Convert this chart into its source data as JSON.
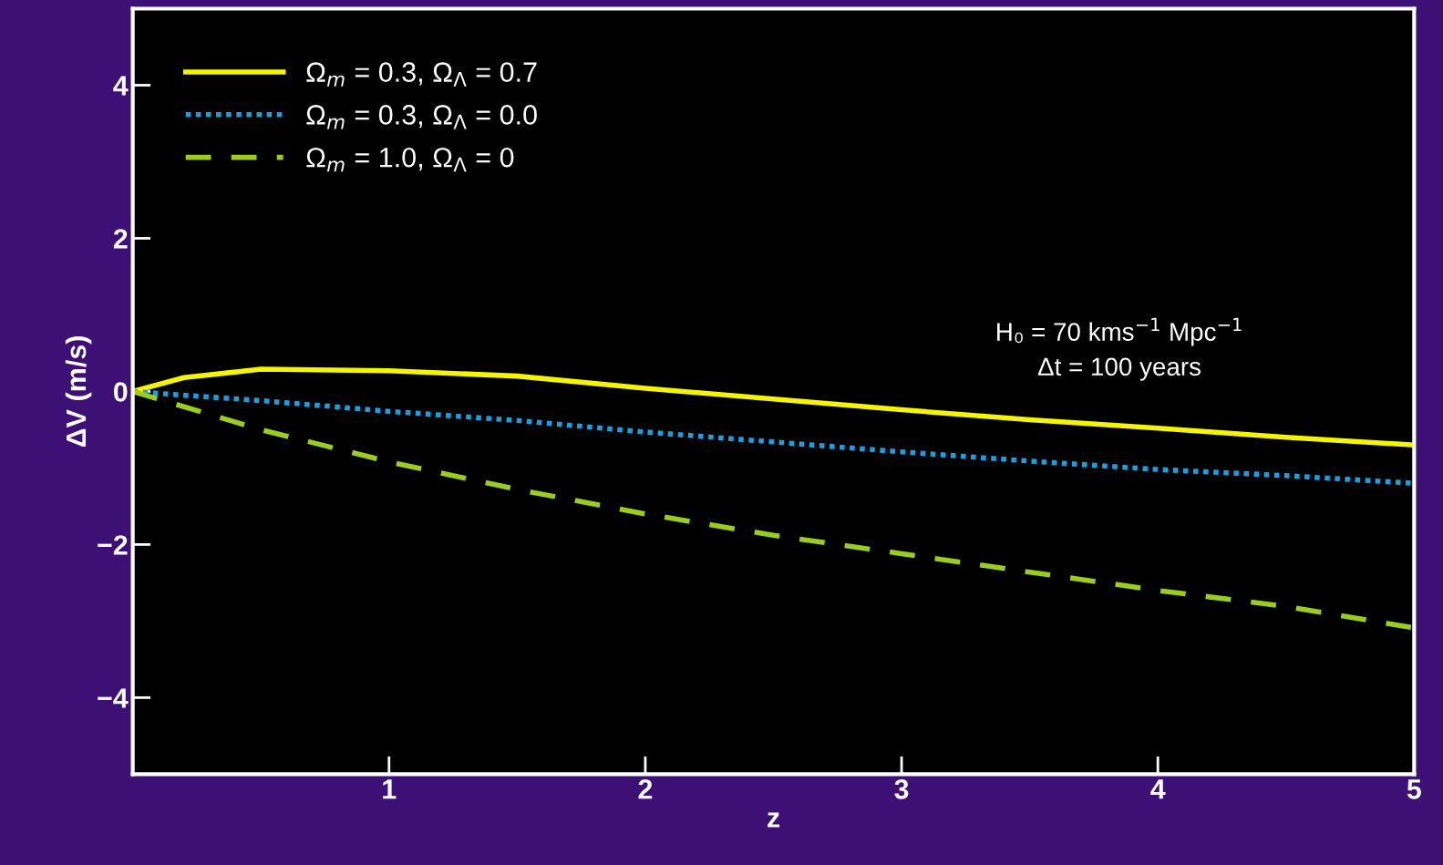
{
  "chart_data": {
    "type": "line",
    "xlabel": "z",
    "ylabel": "ΔV (m/s)",
    "x": [
      0,
      0.2,
      0.5,
      1,
      1.5,
      2,
      2.5,
      3,
      3.5,
      4,
      4.5,
      5
    ],
    "series": [
      {
        "name": "Ω$_{m}$ = 0.3, Ω$_{Λ}$ = 0.7",
        "color": "#f5f500",
        "line_style": "solid",
        "values": [
          0,
          0.18,
          0.29,
          0.27,
          0.2,
          0.04,
          -0.1,
          -0.24,
          -0.37,
          -0.48,
          -0.6,
          -0.7
        ]
      },
      {
        "name": "Ω$_{m}$ = 0.3, Ω$_{Λ}$ = 0.0",
        "color": "#1a9fe0",
        "line_style": "dotted",
        "values": [
          0,
          -0.05,
          -0.12,
          -0.26,
          -0.38,
          -0.53,
          -0.66,
          -0.79,
          -0.91,
          -1.02,
          -1.1,
          -1.2
        ]
      },
      {
        "name": "Ω$_{m}$ = 1.0, Ω$_{Λ}$ = 0",
        "color": "#9acd20",
        "line_style": "dashed",
        "values": [
          0,
          -0.2,
          -0.5,
          -0.92,
          -1.28,
          -1.6,
          -1.88,
          -2.12,
          -2.36,
          -2.6,
          -2.81,
          -3.09
        ]
      }
    ],
    "xlim": [
      0,
      5
    ],
    "xticks": [
      1,
      2,
      3,
      4,
      5
    ],
    "ylim": [
      -5,
      5
    ],
    "yticks": [
      {
        "value": -4,
        "label": "−4"
      },
      {
        "value": -2,
        "label": "−2"
      },
      0,
      2,
      4
    ],
    "annotations": [
      "H₀ = 70 kms$^{−1}$ Mpc$^{−1}$\nΔt = 100 years"
    ],
    "grid": false,
    "legend": "top left",
    "marker": "none"
  }
}
